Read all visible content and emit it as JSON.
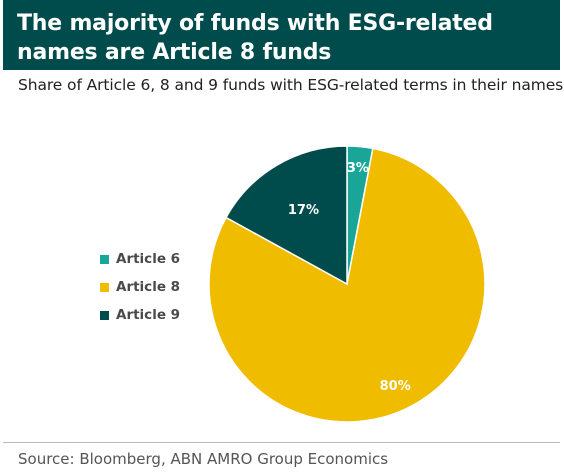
{
  "header": {
    "title": "The majority of funds with ESG-related names are Article 8 funds",
    "subtitle": "Share of Article 6, 8 and 9 funds with ESG-related terms in their names"
  },
  "colors": {
    "header_bg": "#004c4c",
    "article6": "#1aa599",
    "article8": "#f0bc00",
    "article9": "#004c4c"
  },
  "chart_data": {
    "type": "pie",
    "title": "The majority of funds with ESG-related names are Article 8 funds",
    "subtitle": "Share of Article 6, 8 and 9 funds with ESG-related terms in their names",
    "categories": [
      "Article 6",
      "Article 8",
      "Article 9"
    ],
    "values": [
      3,
      80,
      17
    ],
    "labels": [
      "3%",
      "80%",
      "17%"
    ],
    "colors": [
      "#1aa599",
      "#f0bc00",
      "#004c4c"
    ],
    "start_angle": "12 o'clock",
    "direction": "clockwise",
    "legend_position": "left"
  },
  "legend": [
    {
      "label": "Article 6",
      "color": "#1aa599"
    },
    {
      "label": "Article 8",
      "color": "#f0bc00"
    },
    {
      "label": "Article 9",
      "color": "#004c4c"
    }
  ],
  "footer": {
    "source": "Source: Bloomberg, ABN AMRO Group Economics"
  }
}
